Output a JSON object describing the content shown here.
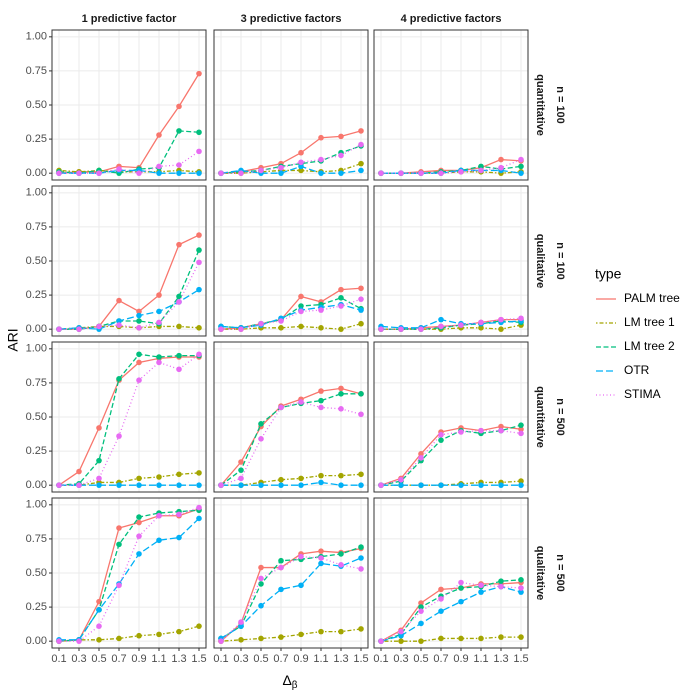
{
  "chart_data": {
    "type": "line",
    "xlabel": {
      "base": "Δ",
      "sub": "β"
    },
    "ylabel": "ARI",
    "legend_title": "type",
    "columns": [
      "1 predictive factor",
      "3 predictive factors",
      "4 predictive factors"
    ],
    "rows": [
      [
        "n = 100",
        "quantitative"
      ],
      [
        "n = 100",
        "qualitative"
      ],
      [
        "n = 500",
        "quantitative"
      ],
      [
        "n = 500",
        "qualitative"
      ]
    ],
    "x": [
      0.1,
      0.3,
      0.5,
      0.7,
      0.9,
      1.1,
      1.3,
      1.5
    ],
    "xlim": [
      0.03,
      1.57
    ],
    "xticks": [
      0.1,
      0.3,
      0.5,
      0.7,
      0.9,
      1.1,
      1.3,
      1.5
    ],
    "ylim": [
      -0.05,
      1.05
    ],
    "yticks": [
      {
        "value": 0,
        "label": "0.00"
      },
      {
        "value": 0.25,
        "label": "0.25"
      },
      {
        "value": 0.5,
        "label": "0.50"
      },
      {
        "value": 0.75,
        "label": "0.75"
      },
      {
        "value": 1,
        "label": "1.00"
      }
    ],
    "grid": true,
    "series": [
      {
        "name": "PALM tree",
        "color": "#F8766D",
        "linetype": "solid"
      },
      {
        "name": "LM tree 1",
        "color": "#A3A500",
        "linetype": "dotdash"
      },
      {
        "name": "LM tree 2",
        "color": "#00BF7D",
        "linetype": "dashed"
      },
      {
        "name": "OTR",
        "color": "#00B0F6",
        "linetype": "longdash"
      },
      {
        "name": "STIMA",
        "color": "#E76BF3",
        "linetype": "dotted"
      }
    ],
    "panels": [
      [
        [
          [
            0,
            0.01,
            0.01,
            0.05,
            0.04,
            0.28,
            0.49,
            0.73
          ],
          [
            0.02,
            0.01,
            0.02,
            0.01,
            0.01,
            0.01,
            0.02,
            0.01
          ],
          [
            0.01,
            0,
            0.02,
            0,
            0.03,
            0.04,
            0.31,
            0.3
          ],
          [
            0,
            0,
            0,
            0.02,
            0.02,
            0,
            0,
            0
          ],
          [
            0,
            0,
            0,
            0.03,
            0,
            0.05,
            0.06,
            0.16
          ]
        ],
        [
          [
            0,
            0.01,
            0.04,
            0.07,
            0.15,
            0.26,
            0.27,
            0.31
          ],
          [
            0,
            0,
            0.01,
            0.02,
            0.02,
            0.01,
            0.02,
            0.07
          ],
          [
            0,
            0.01,
            0.02,
            0.05,
            0.07,
            0.09,
            0.15,
            0.2
          ],
          [
            0,
            0.02,
            0,
            0,
            0.05,
            0,
            0,
            0.02
          ],
          [
            0,
            0,
            0.02,
            0.04,
            0.08,
            0.1,
            0.13,
            0.21
          ]
        ],
        [
          [
            0,
            0,
            0.01,
            0.02,
            0.02,
            0.04,
            0.1,
            0.09
          ],
          [
            0,
            0,
            0,
            0,
            0.01,
            0.01,
            0,
            0.01
          ],
          [
            0,
            0,
            0,
            0.01,
            0.02,
            0.05,
            0.03,
            0.05
          ],
          [
            0,
            0,
            0,
            0,
            0.02,
            0.02,
            0.02,
            0
          ],
          [
            0,
            0,
            0,
            0,
            0.01,
            0.02,
            0.04,
            0.1
          ]
        ]
      ],
      [
        [
          [
            0,
            0,
            0.02,
            0.21,
            0.13,
            0.25,
            0.62,
            0.69
          ],
          [
            0,
            0.01,
            0.02,
            0.02,
            0.01,
            0.02,
            0.02,
            0.01
          ],
          [
            0,
            0,
            0.02,
            0.06,
            0.06,
            0.04,
            0.24,
            0.58
          ],
          [
            0,
            0.01,
            0,
            0.06,
            0.1,
            0.13,
            0.2,
            0.29
          ],
          [
            0,
            0,
            0.02,
            0.03,
            0.01,
            0.05,
            0.2,
            0.49
          ]
        ],
        [
          [
            0,
            0.01,
            0.04,
            0.07,
            0.24,
            0.2,
            0.29,
            0.3
          ],
          [
            0,
            0,
            0.01,
            0.01,
            0.02,
            0.01,
            0,
            0.04
          ],
          [
            0.02,
            0.01,
            0.04,
            0.07,
            0.17,
            0.18,
            0.23,
            0.15
          ],
          [
            0.02,
            0.01,
            0.03,
            0.08,
            0.14,
            0.16,
            0.18,
            0.14
          ],
          [
            0,
            0,
            0.04,
            0.06,
            0.13,
            0.14,
            0.17,
            0.22
          ]
        ],
        [
          [
            0,
            0,
            0.01,
            0.02,
            0.03,
            0.05,
            0.07,
            0.07
          ],
          [
            0,
            0,
            0,
            0,
            0.01,
            0.01,
            0,
            0.03
          ],
          [
            0,
            0,
            0,
            0.01,
            0.03,
            0.04,
            0.06,
            0.05
          ],
          [
            0.02,
            0.01,
            0.01,
            0.07,
            0.04,
            0.04,
            0.05,
            0.06
          ],
          [
            0,
            0,
            0,
            0.02,
            0.03,
            0.05,
            0.07,
            0.08
          ]
        ]
      ],
      [
        [
          [
            0,
            0.1,
            0.42,
            0.77,
            0.9,
            0.93,
            0.94,
            0.94
          ],
          [
            0,
            0,
            0.02,
            0.02,
            0.05,
            0.06,
            0.08,
            0.09
          ],
          [
            0,
            0.01,
            0.18,
            0.78,
            0.96,
            0.94,
            0.95,
            0.95
          ],
          [
            0,
            0,
            0,
            0,
            0,
            0,
            0,
            0
          ],
          [
            0,
            0,
            0.05,
            0.36,
            0.77,
            0.9,
            0.85,
            0.96
          ]
        ],
        [
          [
            0,
            0.17,
            0.43,
            0.58,
            0.63,
            0.69,
            0.71,
            0.67
          ],
          [
            0,
            0,
            0.02,
            0.04,
            0.05,
            0.07,
            0.07,
            0.08
          ],
          [
            0,
            0.11,
            0.45,
            0.57,
            0.6,
            0.62,
            0.67,
            0.67
          ],
          [
            0,
            0,
            0,
            0,
            0,
            0.02,
            0,
            0
          ],
          [
            0,
            0.05,
            0.34,
            0.57,
            0.61,
            0.57,
            0.56,
            0.52
          ]
        ],
        [
          [
            0,
            0.05,
            0.23,
            0.39,
            0.42,
            0.4,
            0.43,
            0.41
          ],
          [
            0,
            0,
            0,
            0,
            0.01,
            0.02,
            0.02,
            0.03
          ],
          [
            0,
            0.03,
            0.18,
            0.33,
            0.4,
            0.38,
            0.4,
            0.44
          ],
          [
            0,
            0,
            0,
            0,
            0,
            0,
            0,
            0
          ],
          [
            0,
            0.04,
            0.2,
            0.37,
            0.39,
            0.4,
            0.4,
            0.38
          ]
        ]
      ],
      [
        [
          [
            0,
            0.01,
            0.29,
            0.83,
            0.87,
            0.92,
            0.92,
            0.97
          ],
          [
            0,
            0.01,
            0.01,
            0.02,
            0.04,
            0.05,
            0.07,
            0.11
          ],
          [
            0,
            0.01,
            0.23,
            0.71,
            0.91,
            0.94,
            0.95,
            0.96
          ],
          [
            0.01,
            0.01,
            0.23,
            0.42,
            0.64,
            0.74,
            0.76,
            0.9
          ],
          [
            0,
            0,
            0.11,
            0.41,
            0.77,
            0.92,
            0.93,
            0.98
          ]
        ],
        [
          [
            0,
            0.13,
            0.54,
            0.54,
            0.64,
            0.66,
            0.65,
            0.68
          ],
          [
            0,
            0.01,
            0.02,
            0.03,
            0.05,
            0.07,
            0.07,
            0.09
          ],
          [
            0.02,
            0.11,
            0.42,
            0.59,
            0.6,
            0.62,
            0.64,
            0.69
          ],
          [
            0.02,
            0.11,
            0.26,
            0.38,
            0.41,
            0.57,
            0.55,
            0.61
          ],
          [
            0,
            0.14,
            0.46,
            0.54,
            0.62,
            0.61,
            0.56,
            0.53
          ]
        ],
        [
          [
            0,
            0.08,
            0.28,
            0.38,
            0.39,
            0.42,
            0.42,
            0.43
          ],
          [
            0,
            0,
            0,
            0.02,
            0.02,
            0.02,
            0.03,
            0.03
          ],
          [
            0,
            0.05,
            0.25,
            0.33,
            0.39,
            0.4,
            0.44,
            0.45
          ],
          [
            0,
            0.04,
            0.13,
            0.22,
            0.29,
            0.36,
            0.4,
            0.36
          ],
          [
            0,
            0.07,
            0.22,
            0.31,
            0.43,
            0.41,
            0.4,
            0.39
          ]
        ]
      ]
    ]
  }
}
